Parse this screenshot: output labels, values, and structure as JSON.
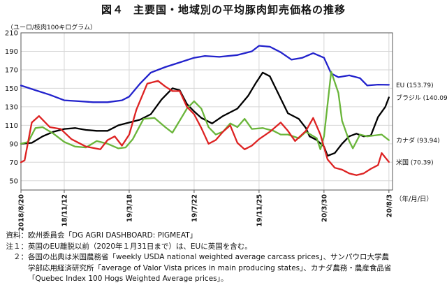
{
  "figure": {
    "number": "図４",
    "title": "主要国・地域別の平均豚肉卸売価格の推移",
    "unit_label": "（ユーロ/枝肉100キログラム）",
    "x_unit_label": "（年/月/日）"
  },
  "chart_data": {
    "type": "line",
    "title": "主要国・地域別の平均豚肉卸売価格の推移",
    "ylabel": "（ユーロ/枝肉100キログラム）",
    "xlabel": "（年/月/日）",
    "ylim": [
      40,
      210
    ],
    "yticks": [
      50,
      70,
      90,
      110,
      130,
      150,
      170,
      190,
      210
    ],
    "x_tick_labels": [
      "2018/8/20",
      "18/11/12",
      "19/3/18",
      "19/7/22",
      "19/11/25",
      "20/3/30",
      "20/8/3"
    ],
    "x_tick_positions": [
      0,
      12,
      30,
      48,
      66,
      84,
      102
    ],
    "x_step": "weekly",
    "grid": true,
    "series": [
      {
        "name": "EU",
        "end_label": "EU (153.79)",
        "color": "#2222cc",
        "points": [
          [
            0,
            153
          ],
          [
            4,
            148
          ],
          [
            8,
            143
          ],
          [
            12,
            137
          ],
          [
            16,
            136
          ],
          [
            20,
            135
          ],
          [
            24,
            135
          ],
          [
            28,
            137
          ],
          [
            30,
            141
          ],
          [
            33,
            155
          ],
          [
            36,
            167
          ],
          [
            40,
            173
          ],
          [
            44,
            178
          ],
          [
            48,
            183
          ],
          [
            51,
            185
          ],
          [
            55,
            184
          ],
          [
            60,
            186
          ],
          [
            64,
            190
          ],
          [
            66,
            196
          ],
          [
            69,
            195
          ],
          [
            72,
            189
          ],
          [
            75,
            181
          ],
          [
            78,
            183
          ],
          [
            81,
            188
          ],
          [
            84,
            183
          ],
          [
            86,
            166
          ],
          [
            88,
            162
          ],
          [
            91,
            164
          ],
          [
            94,
            161
          ],
          [
            96,
            153
          ],
          [
            99,
            154
          ],
          [
            102,
            153.79
          ]
        ]
      },
      {
        "name": "ブラジル",
        "end_label": "ブラジル (140.09)",
        "color": "#000000",
        "points": [
          [
            0,
            90
          ],
          [
            3,
            91
          ],
          [
            6,
            98
          ],
          [
            9,
            103
          ],
          [
            12,
            106
          ],
          [
            15,
            107
          ],
          [
            18,
            105
          ],
          [
            21,
            104
          ],
          [
            24,
            104
          ],
          [
            27,
            110
          ],
          [
            30,
            113
          ],
          [
            33,
            116
          ],
          [
            36,
            122
          ],
          [
            39,
            138
          ],
          [
            42,
            150
          ],
          [
            44,
            148
          ],
          [
            46,
            133
          ],
          [
            48,
            125
          ],
          [
            50,
            118
          ],
          [
            53,
            112
          ],
          [
            56,
            120
          ],
          [
            60,
            128
          ],
          [
            63,
            142
          ],
          [
            65,
            155
          ],
          [
            67,
            167
          ],
          [
            69,
            163
          ],
          [
            71,
            147
          ],
          [
            74,
            123
          ],
          [
            77,
            117
          ],
          [
            79,
            107
          ],
          [
            80,
            98
          ],
          [
            82,
            94
          ],
          [
            84,
            87
          ],
          [
            85,
            77
          ],
          [
            87,
            80
          ],
          [
            89,
            90
          ],
          [
            91,
            98
          ],
          [
            93,
            101
          ],
          [
            95,
            98
          ],
          [
            97,
            99
          ],
          [
            99,
            119
          ],
          [
            101,
            130
          ],
          [
            102,
            140.09
          ]
        ]
      },
      {
        "name": "カナダ",
        "end_label": "カナダ (93.94)",
        "color": "#6ab53a",
        "points": [
          [
            0,
            90
          ],
          [
            2,
            92
          ],
          [
            4,
            107
          ],
          [
            6,
            108
          ],
          [
            9,
            101
          ],
          [
            12,
            92
          ],
          [
            15,
            87
          ],
          [
            18,
            86
          ],
          [
            21,
            93
          ],
          [
            24,
            90
          ],
          [
            27,
            85
          ],
          [
            29,
            86
          ],
          [
            31,
            95
          ],
          [
            34,
            117
          ],
          [
            37,
            118
          ],
          [
            40,
            108
          ],
          [
            42,
            102
          ],
          [
            44,
            115
          ],
          [
            46,
            128
          ],
          [
            48,
            136
          ],
          [
            50,
            128
          ],
          [
            52,
            108
          ],
          [
            54,
            100
          ],
          [
            56,
            103
          ],
          [
            58,
            112
          ],
          [
            60,
            108
          ],
          [
            62,
            117
          ],
          [
            64,
            106
          ],
          [
            67,
            107
          ],
          [
            70,
            104
          ],
          [
            72,
            100
          ],
          [
            74,
            100
          ],
          [
            77,
            96
          ],
          [
            79,
            103
          ],
          [
            82,
            96
          ],
          [
            83,
            84
          ],
          [
            84,
            98
          ],
          [
            86,
            168
          ],
          [
            88,
            145
          ],
          [
            89,
            115
          ],
          [
            91,
            93
          ],
          [
            92,
            85
          ],
          [
            94,
            100
          ],
          [
            96,
            98
          ],
          [
            98,
            99
          ],
          [
            100,
            100
          ],
          [
            102,
            93.94
          ]
        ]
      },
      {
        "name": "米国",
        "end_label": "米国 (70.39)",
        "color": "#dd2222",
        "points": [
          [
            0,
            70
          ],
          [
            1,
            72
          ],
          [
            3,
            113
          ],
          [
            5,
            120
          ],
          [
            8,
            108
          ],
          [
            11,
            106
          ],
          [
            14,
            95
          ],
          [
            18,
            87
          ],
          [
            22,
            84
          ],
          [
            24,
            94
          ],
          [
            26,
            98
          ],
          [
            28,
            88
          ],
          [
            30,
            100
          ],
          [
            32,
            127
          ],
          [
            35,
            155
          ],
          [
            38,
            158
          ],
          [
            40,
            152
          ],
          [
            42,
            147
          ],
          [
            44,
            147
          ],
          [
            46,
            130
          ],
          [
            48,
            122
          ],
          [
            50,
            107
          ],
          [
            52,
            90
          ],
          [
            54,
            94
          ],
          [
            56,
            103
          ],
          [
            58,
            110
          ],
          [
            60,
            91
          ],
          [
            62,
            84
          ],
          [
            64,
            88
          ],
          [
            66,
            95
          ],
          [
            69,
            103
          ],
          [
            72,
            113
          ],
          [
            74,
            104
          ],
          [
            76,
            93
          ],
          [
            79,
            104
          ],
          [
            81,
            118
          ],
          [
            83,
            100
          ],
          [
            85,
            73
          ],
          [
            87,
            64
          ],
          [
            89,
            62
          ],
          [
            91,
            58
          ],
          [
            93,
            56
          ],
          [
            95,
            58
          ],
          [
            97,
            63
          ],
          [
            99,
            67
          ],
          [
            100,
            80
          ],
          [
            102,
            70.39
          ]
        ]
      }
    ]
  },
  "notes": [
    {
      "label": "資料：",
      "text": "欧州委員会「DG AGRI DASHBOARD: PIGMEAT」"
    },
    {
      "label": "注１：",
      "text": "英国のEU離脱以前（2020年１月31日まで）は、EUに英国を含む。"
    },
    {
      "label": "２：",
      "text": "各国の出典は米国農務省「weekly USDA national weighted average carcass prices」、サンパウロ大学農"
    },
    {
      "label": "",
      "text": "学部応用経済研究所「average of Valor Vista prices in main producing states」、カナダ農務・農産食品省"
    },
    {
      "label": "",
      "text": "「Quebec Index 100 Hogs Weighted Average prices」。"
    }
  ]
}
